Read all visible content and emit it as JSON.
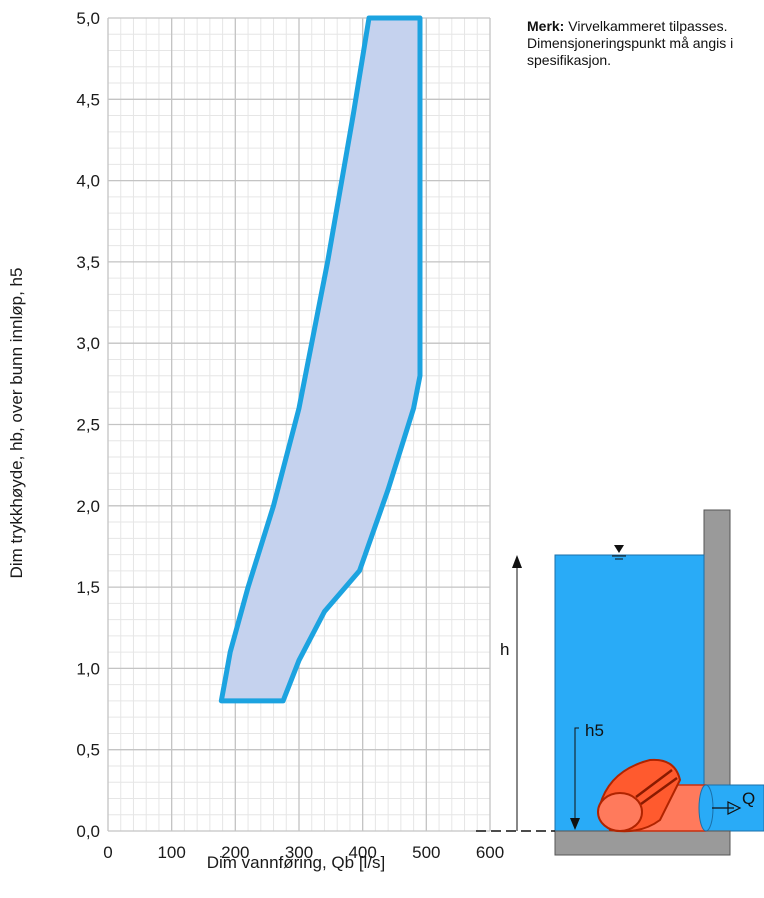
{
  "note": {
    "bold": "Merk:",
    "text": "Virvelkammeret tilpasses. Dimensjoneringspunkt må angis i spesifikasjon."
  },
  "chart_data": {
    "type": "area",
    "title": "",
    "xlabel": "Dim vannføring, Qb [l/s]",
    "ylabel": "Dim trykkhøyde, hb, over bunn innløp, h5",
    "xlim": [
      0,
      600
    ],
    "ylim": [
      0,
      5
    ],
    "xticks": [
      0,
      100,
      200,
      300,
      400,
      500,
      600
    ],
    "xtick_labels": [
      "0",
      "100",
      "200",
      "300",
      "400",
      "500",
      "600"
    ],
    "yticks": [
      0,
      0.5,
      1,
      1.5,
      2,
      2.5,
      3,
      3.5,
      4,
      4.5,
      5
    ],
    "ytick_labels": [
      "0,0",
      "0,5",
      "1,0",
      "1,5",
      "2,0",
      "2,5",
      "3,0",
      "3,5",
      "4,0",
      "4,5",
      "5,0"
    ],
    "grid": true,
    "minor_grid_step": {
      "x": 20,
      "y": 0.1
    },
    "fill_color": "#c5d2ee",
    "line_color": "#1ca3e0",
    "boundary": [
      {
        "x": 178,
        "y": 0.8
      },
      {
        "x": 185,
        "y": 0.95
      },
      {
        "x": 192,
        "y": 1.1
      },
      {
        "x": 220,
        "y": 1.5
      },
      {
        "x": 260,
        "y": 2.0
      },
      {
        "x": 300,
        "y": 2.6
      },
      {
        "x": 345,
        "y": 3.5
      },
      {
        "x": 385,
        "y": 4.4
      },
      {
        "x": 410,
        "y": 5.0
      },
      {
        "x": 490,
        "y": 5.0
      },
      {
        "x": 490,
        "y": 2.8
      },
      {
        "x": 480,
        "y": 2.6
      },
      {
        "x": 440,
        "y": 2.1
      },
      {
        "x": 395,
        "y": 1.6
      },
      {
        "x": 340,
        "y": 1.35
      },
      {
        "x": 300,
        "y": 1.05
      },
      {
        "x": 275,
        "y": 0.8
      },
      {
        "x": 178,
        "y": 0.8
      }
    ]
  },
  "diagram": {
    "h_label": "h",
    "h5_label": "h5",
    "q_label": "Q",
    "water_color": "#29abf7",
    "wall_color": "#9a9a9a",
    "pipe_color": "#ff6f52",
    "pipe_outline": "#cc2200"
  }
}
